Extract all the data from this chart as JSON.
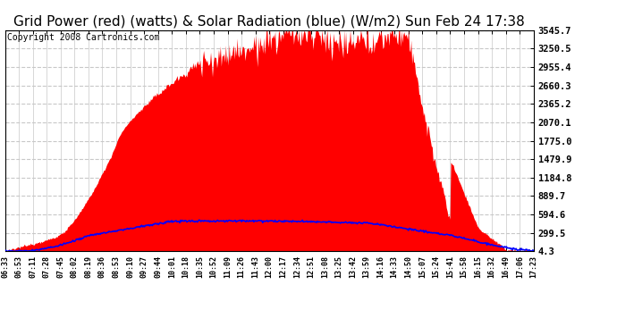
{
  "title": "Grid Power (red) (watts) & Solar Radiation (blue) (W/m2) Sun Feb 24 17:38",
  "copyright": "Copyright 2008 Cartronics.com",
  "yticks": [
    4.3,
    299.5,
    594.6,
    889.7,
    1184.8,
    1479.9,
    1775.0,
    2070.1,
    2365.2,
    2660.3,
    2955.4,
    3250.5,
    3545.7
  ],
  "ymin": 4.3,
  "ymax": 3545.7,
  "xtick_labels": [
    "06:33",
    "06:53",
    "07:11",
    "07:28",
    "07:45",
    "08:02",
    "08:19",
    "08:36",
    "08:53",
    "09:10",
    "09:27",
    "09:44",
    "10:01",
    "10:18",
    "10:35",
    "10:52",
    "11:09",
    "11:26",
    "11:43",
    "12:00",
    "12:17",
    "12:34",
    "12:51",
    "13:08",
    "13:25",
    "13:42",
    "13:59",
    "14:16",
    "14:33",
    "14:50",
    "15:07",
    "15:24",
    "15:41",
    "15:58",
    "16:15",
    "16:32",
    "16:49",
    "17:06",
    "17:23"
  ],
  "red_fill_color": "#FF0000",
  "blue_line_color": "#0000FF",
  "grid_color": "#C8C8C8",
  "background_color": "#FFFFFF",
  "title_fontsize": 11,
  "copyright_fontsize": 7
}
